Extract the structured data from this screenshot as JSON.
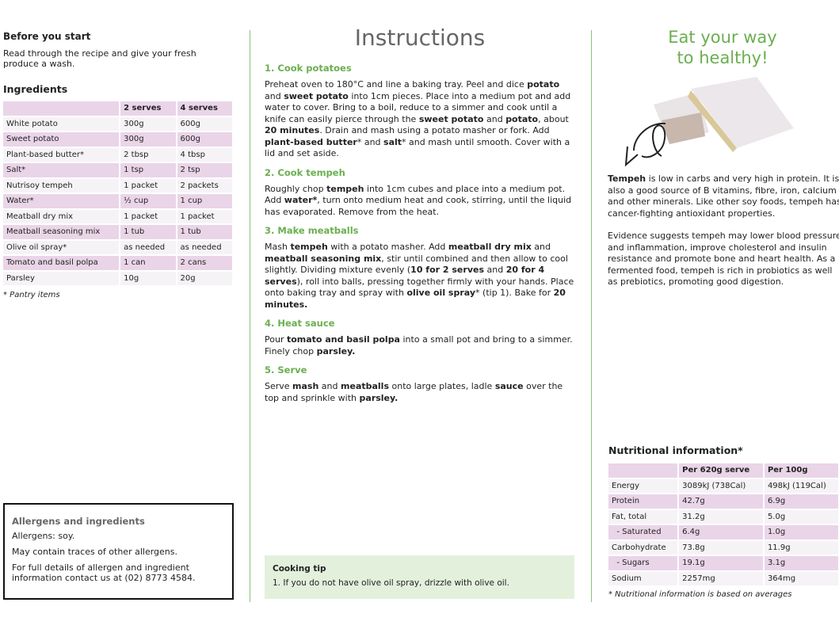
{
  "before": {
    "title": "Before you start",
    "text": "Read through the recipe and give your fresh produce a wash."
  },
  "ingredients": {
    "title": "Ingredients",
    "headers": [
      "",
      "2 serves",
      "4 serves"
    ],
    "rows": [
      [
        "White potato",
        "300g",
        "600g"
      ],
      [
        "Sweet potato",
        "300g",
        "600g"
      ],
      [
        "Plant-based butter*",
        "2 tbsp",
        "4 tbsp"
      ],
      [
        "Salt*",
        "1 tsp",
        "2 tsp"
      ],
      [
        "Nutrisoy tempeh",
        "1 packet",
        "2 packets"
      ],
      [
        "Water*",
        "½ cup",
        "1 cup"
      ],
      [
        "Meatball dry mix",
        "1 packet",
        "1 packet"
      ],
      [
        "Meatball seasoning mix",
        "1 tub",
        "1 tub"
      ],
      [
        "Olive oil spray*",
        "as needed",
        "as needed"
      ],
      [
        "Tomato and basil polpa",
        "1 can",
        "2 cans"
      ],
      [
        "Parsley",
        "10g",
        "20g"
      ]
    ],
    "note": "* Pantry items"
  },
  "allergens": {
    "title": "Allergens and ingredients",
    "lines": [
      "Allergens: soy.",
      "May contain traces of other allergens.",
      "For full details of allergen and ingredient information contact us at (02) 8773 4584."
    ]
  },
  "instructions": {
    "title": "Instructions",
    "steps": [
      {
        "title": "1. Cook potatoes",
        "segments": [
          {
            "t": "Preheat oven to 180°C and line a baking tray. Peel and dice "
          },
          {
            "t": "potato",
            "b": true
          },
          {
            "t": " and "
          },
          {
            "t": "sweet potato",
            "b": true
          },
          {
            "t": " into 1cm pieces. Place into a medium pot and add water to cover. Bring to a boil, reduce to a simmer and cook until a knife can easily pierce through the "
          },
          {
            "t": "sweet potato",
            "b": true
          },
          {
            "t": " and "
          },
          {
            "t": "potato",
            "b": true
          },
          {
            "t": ", about "
          },
          {
            "t": "20 minutes",
            "b": true
          },
          {
            "t": ". Drain and mash using a potato masher or fork. Add "
          },
          {
            "t": "plant-based butter",
            "b": true
          },
          {
            "t": "* and "
          },
          {
            "t": "salt",
            "b": true
          },
          {
            "t": "* and mash until smooth. Cover with a lid and set aside."
          }
        ]
      },
      {
        "title": "2. Cook tempeh",
        "segments": [
          {
            "t": "Roughly chop "
          },
          {
            "t": "tempeh",
            "b": true
          },
          {
            "t": " into 1cm cubes and place into a medium pot. Add "
          },
          {
            "t": "water*",
            "b": true
          },
          {
            "t": ", turn onto medium heat and cook, stirring, until the liquid has evaporated. Remove from the heat."
          }
        ]
      },
      {
        "title": "3. Make meatballs",
        "segments": [
          {
            "t": "Mash "
          },
          {
            "t": "tempeh",
            "b": true
          },
          {
            "t": " with a potato masher. Add "
          },
          {
            "t": "meatball dry mix",
            "b": true
          },
          {
            "t": " and "
          },
          {
            "t": "meatball seasoning mix",
            "b": true
          },
          {
            "t": ", stir until combined and then allow to cool slightly. Dividing mixture evenly ("
          },
          {
            "t": "10 for 2 serves",
            "b": true
          },
          {
            "t": " and "
          },
          {
            "t": "20 for 4 serves",
            "b": true
          },
          {
            "t": "), roll into balls, pressing together firmly with your hands. Place onto baking tray and spray with "
          },
          {
            "t": "olive oil spray",
            "b": true
          },
          {
            "t": "* (tip 1). Bake for "
          },
          {
            "t": "20 minutes.",
            "b": true
          }
        ]
      },
      {
        "title": "4. Heat sauce",
        "segments": [
          {
            "t": "Pour "
          },
          {
            "t": "tomato and basil polpa",
            "b": true
          },
          {
            "t": " into a small pot and bring to a simmer. Finely chop "
          },
          {
            "t": "parsley.",
            "b": true
          }
        ]
      },
      {
        "title": "5. Serve",
        "segments": [
          {
            "t": "Serve "
          },
          {
            "t": "mash",
            "b": true
          },
          {
            "t": " and "
          },
          {
            "t": "meatballs",
            "b": true
          },
          {
            "t": " onto large plates, ladle "
          },
          {
            "t": "sauce",
            "b": true
          },
          {
            "t": " over the top and sprinkle with "
          },
          {
            "t": "parsley.",
            "b": true
          }
        ]
      }
    ],
    "tip": {
      "title": "Cooking tip",
      "items": [
        "1.  If you do not have olive oil spray, drizzle with olive oil."
      ]
    }
  },
  "promo": {
    "headline1": "Eat your way",
    "headline2": "to healthy!",
    "p1": [
      {
        "t": "Tempeh",
        "b": true
      },
      {
        "t": " is low in carbs and very high in protein. It is also a good source of B vitamins, fibre, iron, calcium and other minerals. Like other soy foods, tempeh has cancer-fighting antioxidant properties."
      }
    ],
    "p2": "Evidence suggests tempeh may lower blood pressure and inflammation, improve cholesterol and insulin resistance and promote bone and heart health. As a fermented food, tempeh is rich in probiotics as well as prebiotics, promoting good digestion."
  },
  "nutrition": {
    "title": "Nutritional information*",
    "headers": [
      "",
      "Per 620g serve",
      "Per 100g"
    ],
    "rows": [
      [
        "Energy",
        "3089kJ (738Cal)",
        "498kJ (119Cal)"
      ],
      [
        "Protein",
        "42.7g",
        "6.9g"
      ],
      [
        "Fat, total",
        "31.2g",
        "5.0g"
      ],
      [
        "  - Saturated",
        "6.4g",
        "1.0g"
      ],
      [
        "Carbohydrate",
        "73.8g",
        "11.9g"
      ],
      [
        "  - Sugars",
        "19.1g",
        "3.1g"
      ],
      [
        "Sodium",
        "2257mg",
        "364mg"
      ]
    ],
    "note": "* Nutritional information is based on averages"
  },
  "colors": {
    "accent": "#6aaf4f",
    "row_pink": "#ead5e8",
    "row_light": "#f6f3f6",
    "tip_bg": "#e3f0dc"
  }
}
